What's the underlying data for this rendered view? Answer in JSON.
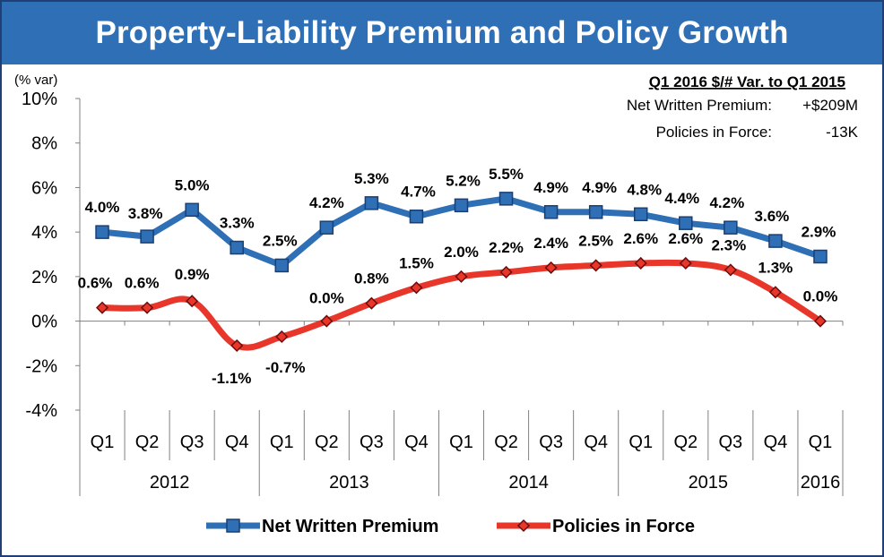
{
  "title": "Property-Liability Premium and Policy Growth",
  "y_unit_label": "(% var)",
  "summary": {
    "heading": "Q1 2016 $/# Var. to Q1 2015",
    "rows": [
      {
        "label": "Net Written Premium:",
        "value": "+$209M"
      },
      {
        "label": "Policies in Force:",
        "value": "-13K"
      }
    ]
  },
  "colors": {
    "premium": "#2e6fb5",
    "policies": "#e8362a",
    "title_bg": "#2e6fb5"
  },
  "chart_data": {
    "type": "line",
    "categories": [
      "Q1",
      "Q2",
      "Q3",
      "Q4",
      "Q1",
      "Q2",
      "Q3",
      "Q4",
      "Q1",
      "Q2",
      "Q3",
      "Q4",
      "Q1",
      "Q2",
      "Q3",
      "Q4",
      "Q1"
    ],
    "year_groups": [
      {
        "label": "2012",
        "span": 4
      },
      {
        "label": "2013",
        "span": 4
      },
      {
        "label": "2014",
        "span": 4
      },
      {
        "label": "2015",
        "span": 4
      },
      {
        "label": "2016",
        "span": 1
      }
    ],
    "y_ticks": [
      "10%",
      "8%",
      "6%",
      "4%",
      "2%",
      "0%",
      "-2%",
      "-4%"
    ],
    "ylim": [
      -4,
      10
    ],
    "grid": false,
    "legend_position": "bottom",
    "series": [
      {
        "name": "Net Written Premium",
        "values": [
          4.0,
          3.8,
          5.0,
          3.3,
          2.5,
          4.2,
          5.3,
          4.7,
          5.2,
          5.5,
          4.9,
          4.9,
          4.8,
          4.4,
          4.2,
          3.6,
          2.9
        ],
        "labels": [
          "4.0%",
          "3.8%",
          "5.0%",
          "3.3%",
          "2.5%",
          "4.2%",
          "5.3%",
          "4.7%",
          "5.2%",
          "5.5%",
          "4.9%",
          "4.9%",
          "4.8%",
          "4.4%",
          "4.2%",
          "3.6%",
          "2.9%"
        ],
        "marker": "square"
      },
      {
        "name": "Policies in Force",
        "values": [
          0.6,
          0.6,
          0.9,
          -1.1,
          -0.7,
          0.0,
          0.8,
          1.5,
          2.0,
          2.2,
          2.4,
          2.5,
          2.6,
          2.6,
          2.3,
          1.3,
          0.0
        ],
        "labels": [
          "0.6%",
          "0.6%",
          "0.9%",
          "-1.1%",
          "-0.7%",
          "0.0%",
          "0.8%",
          "1.5%",
          "2.0%",
          "2.2%",
          "2.4%",
          "2.5%",
          "2.6%",
          "2.6%",
          "2.3%",
          "1.3%",
          "0.0%"
        ],
        "marker": "diamond"
      }
    ]
  }
}
